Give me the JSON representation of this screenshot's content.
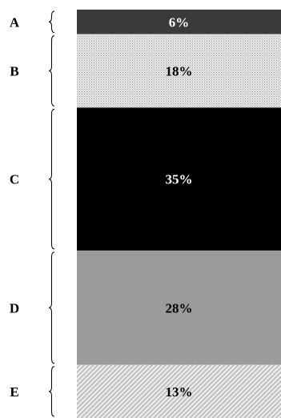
{
  "chart_data": {
    "type": "bar",
    "orientation": "stacked-vertical-100",
    "title": "",
    "xlabel": "",
    "ylabel": "",
    "ylim": [
      0,
      100
    ],
    "grid": false,
    "categories": [
      "A",
      "B",
      "C",
      "D",
      "E"
    ],
    "values": [
      6,
      18,
      35,
      28,
      13
    ],
    "data_labels": [
      "6%",
      "18%",
      "35%",
      "28%",
      "13%"
    ],
    "colors": [
      "#3a3a3a",
      "#dadada",
      "#000000",
      "#9b9b9b",
      "#e4e4e4"
    ],
    "patterns": [
      "solid",
      "dots",
      "solid",
      "solid",
      "diagonal-hatch"
    ],
    "label_colors": [
      "#ffffff",
      "#000000",
      "#ffffff",
      "#000000",
      "#000000"
    ]
  }
}
